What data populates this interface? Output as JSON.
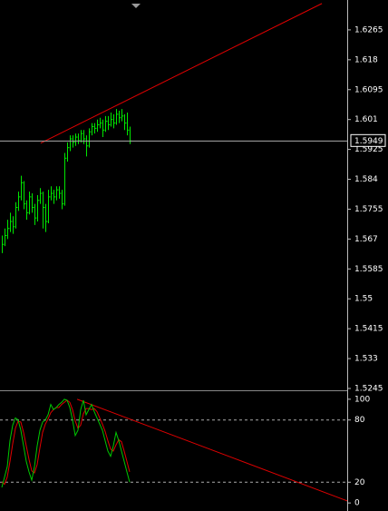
{
  "chart_data": [
    {
      "type": "candlestick",
      "color": "#00e600",
      "ylim": [
        1.5245,
        1.635
      ],
      "yticks": [
        1.6265,
        1.618,
        1.6095,
        1.601,
        1.5925,
        1.584,
        1.5755,
        1.567,
        1.5585,
        1.55,
        1.5415,
        1.533,
        1.5245
      ],
      "close": [
        1.5655,
        1.568,
        1.57,
        1.572,
        1.5705,
        1.576,
        1.579,
        1.583,
        1.577,
        1.5745,
        1.579,
        1.576,
        1.573,
        1.578,
        1.58,
        1.576,
        1.572,
        1.579,
        1.58,
        1.579,
        1.581,
        1.58,
        1.577,
        1.59,
        1.593,
        1.5955,
        1.5945,
        1.596,
        1.595,
        1.597,
        1.5955,
        1.5935,
        1.5975,
        1.599,
        1.5985,
        1.5995,
        1.6,
        1.598,
        1.6005,
        1.5995,
        1.601,
        1.6,
        1.6025,
        1.6015,
        1.602,
        1.6,
        1.598,
        1.5949
      ],
      "high": [
        1.568,
        1.57,
        1.5725,
        1.5745,
        1.5735,
        1.5775,
        1.5805,
        1.585,
        1.5835,
        1.578,
        1.5805,
        1.58,
        1.577,
        1.5795,
        1.5815,
        1.5805,
        1.577,
        1.581,
        1.582,
        1.581,
        1.582,
        1.582,
        1.581,
        1.5915,
        1.5945,
        1.5965,
        1.5965,
        1.597,
        1.597,
        1.598,
        1.598,
        1.5965,
        1.5985,
        1.6,
        1.6,
        1.601,
        1.6015,
        1.601,
        1.602,
        1.602,
        1.603,
        1.6025,
        1.604,
        1.6035,
        1.604,
        1.6025,
        1.603,
        1.599
      ],
      "low": [
        1.563,
        1.565,
        1.567,
        1.569,
        1.5685,
        1.57,
        1.575,
        1.578,
        1.5755,
        1.5725,
        1.574,
        1.5745,
        1.571,
        1.572,
        1.577,
        1.57,
        1.569,
        1.5715,
        1.578,
        1.577,
        1.578,
        1.5785,
        1.5755,
        1.5765,
        1.589,
        1.592,
        1.593,
        1.5935,
        1.594,
        1.5945,
        1.594,
        1.5905,
        1.593,
        1.5965,
        1.597,
        1.5975,
        1.5985,
        1.596,
        1.5975,
        1.598,
        1.599,
        1.5985,
        1.5995,
        1.6,
        1.6005,
        1.598,
        1.5965,
        1.594
      ],
      "trendline": {
        "color": "#e00000",
        "x": [
          14.3,
          117.7
        ],
        "y": [
          1.5943,
          1.634
        ]
      },
      "last_price": 1.5949
    },
    {
      "type": "line",
      "ylim": [
        -6,
        106
      ],
      "yticks": [
        100,
        80,
        20,
        0
      ],
      "levels": [
        80,
        20
      ],
      "series": [
        {
          "color": "#00c800",
          "values": [
            15,
            25,
            35,
            60,
            75,
            82,
            80,
            70,
            55,
            40,
            30,
            22,
            35,
            55,
            70,
            78,
            80,
            85,
            95,
            90,
            92,
            95,
            97,
            100,
            99,
            92,
            80,
            65,
            70,
            90,
            99,
            85,
            90,
            95,
            88,
            82,
            76,
            70,
            60,
            50,
            45,
            55,
            68,
            60,
            50,
            40,
            30,
            20
          ]
        },
        {
          "color": "#e00000",
          "values": [
            20,
            18,
            25,
            40,
            57,
            72,
            79,
            78,
            68,
            55,
            42,
            31,
            29,
            37,
            53,
            68,
            76,
            81,
            87,
            90,
            92,
            92,
            95,
            97,
            99,
            97,
            90,
            79,
            72,
            75,
            86,
            91,
            91,
            90,
            91,
            88,
            82,
            76,
            69,
            60,
            52,
            50,
            56,
            61,
            59,
            50,
            40,
            30
          ]
        }
      ],
      "trendline": {
        "color": "#e00000",
        "x": [
          27.7,
          127
        ],
        "y": [
          100,
          2
        ]
      }
    }
  ]
}
